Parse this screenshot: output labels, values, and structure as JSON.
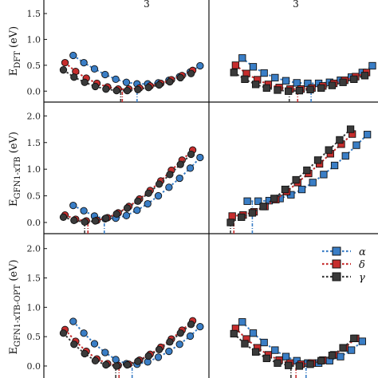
{
  "colors": {
    "alpha": "#3a7ec6",
    "delta": "#c62d2d",
    "gamma": "#3a3a3a"
  },
  "y_labels": [
    {
      "main": "E",
      "sub": "DFT",
      "unit": " (eV)"
    },
    {
      "main": "E",
      "sub": "GFN1-xTB",
      "unit": " (eV)"
    },
    {
      "main": "E",
      "sub": "GFN1-xTB-OPT",
      "unit": " (eV)"
    }
  ],
  "top_notes": [
    "3",
    "3"
  ],
  "legend": [
    {
      "key": "alpha",
      "label": "α"
    },
    {
      "key": "delta",
      "label": "δ"
    },
    {
      "key": "gamma",
      "label": "γ"
    }
  ],
  "chart_data": [
    {
      "type": "scatter",
      "row": 0,
      "col": 0,
      "marker": "circle",
      "ylim": [
        -0.15,
        1.7
      ],
      "yticks": [
        "0.0",
        "0.5",
        "1.0",
        "1.5"
      ],
      "xlim": [
        0.5,
        10
      ],
      "series": [
        {
          "key": "alpha",
          "x": [
            2.0,
            2.65,
            3.3,
            3.95,
            4.6,
            5.25,
            5.9,
            6.55,
            7.2,
            7.85,
            8.5,
            9.15,
            9.75
          ],
          "y": [
            0.69,
            0.55,
            0.43,
            0.32,
            0.23,
            0.17,
            0.14,
            0.14,
            0.16,
            0.21,
            0.28,
            0.37,
            0.49
          ]
        },
        {
          "key": "delta",
          "x": [
            1.5,
            2.15,
            2.8,
            3.45,
            4.1,
            4.75,
            5.4,
            6.05,
            6.7,
            7.35,
            8.0,
            8.65,
            9.3
          ],
          "y": [
            0.55,
            0.38,
            0.25,
            0.15,
            0.08,
            0.04,
            0.04,
            0.06,
            0.1,
            0.15,
            0.22,
            0.3,
            0.4
          ]
        },
        {
          "key": "gamma",
          "x": [
            1.4,
            2.05,
            2.7,
            3.35,
            4.0,
            4.65,
            5.3,
            5.95,
            6.6,
            7.25,
            7.9,
            8.55,
            9.2
          ],
          "y": [
            0.41,
            0.27,
            0.17,
            0.09,
            0.04,
            0.01,
            0.01,
            0.03,
            0.07,
            0.12,
            0.18,
            0.26,
            0.34
          ]
        }
      ],
      "minima": [
        {
          "key": "alpha",
          "x": 5.9
        },
        {
          "key": "delta",
          "x": 5.0
        },
        {
          "key": "gamma",
          "x": 4.9
        }
      ]
    },
    {
      "type": "scatter",
      "row": 0,
      "col": 1,
      "marker": "square",
      "ylim": [
        -0.15,
        1.7
      ],
      "yticks": [],
      "xlim": [
        0.5,
        10
      ],
      "series": [
        {
          "key": "alpha",
          "x": [
            2.2,
            2.85,
            3.5,
            4.15,
            4.8,
            5.45,
            6.1,
            6.75,
            7.4,
            8.05,
            8.7,
            9.35,
            9.95
          ],
          "y": [
            0.64,
            0.47,
            0.35,
            0.26,
            0.2,
            0.16,
            0.15,
            0.15,
            0.17,
            0.21,
            0.27,
            0.36,
            0.49
          ]
        },
        {
          "key": "delta",
          "x": [
            1.8,
            2.45,
            3.1,
            3.75,
            4.4,
            5.05,
            5.7,
            6.35,
            7.0,
            7.65,
            8.3,
            8.95,
            9.6
          ],
          "y": [
            0.5,
            0.34,
            0.22,
            0.13,
            0.07,
            0.04,
            0.04,
            0.06,
            0.1,
            0.15,
            0.21,
            0.28,
            0.36
          ]
        },
        {
          "key": "gamma",
          "x": [
            1.7,
            2.35,
            3.0,
            3.65,
            4.3,
            4.95,
            5.6,
            6.25,
            6.9,
            7.55,
            8.2,
            8.85,
            9.5
          ],
          "y": [
            0.36,
            0.23,
            0.13,
            0.06,
            0.02,
            0.0,
            0.01,
            0.03,
            0.06,
            0.11,
            0.17,
            0.23,
            0.3
          ]
        }
      ],
      "minima": [
        {
          "key": "alpha",
          "x": 6.3
        },
        {
          "key": "delta",
          "x": 5.5
        },
        {
          "key": "gamma",
          "x": 5.0
        }
      ]
    },
    {
      "type": "scatter",
      "row": 1,
      "col": 0,
      "marker": "circle",
      "ylim": [
        -0.15,
        2.2
      ],
      "yticks": [
        "0.0",
        "0.5",
        "1.0",
        "1.5",
        "2.0"
      ],
      "xlim": [
        0.5,
        10
      ],
      "series": [
        {
          "key": "alpha",
          "x": [
            2.0,
            2.65,
            3.3,
            3.95,
            4.6,
            5.25,
            5.9,
            6.55,
            7.2,
            7.85,
            8.5,
            9.15,
            9.75
          ],
          "y": [
            0.32,
            0.22,
            0.12,
            0.07,
            0.08,
            0.13,
            0.23,
            0.35,
            0.5,
            0.66,
            0.83,
            1.02,
            1.22
          ]
        },
        {
          "key": "delta",
          "x": [
            1.5,
            2.15,
            2.8,
            3.45,
            4.1,
            4.75,
            5.4,
            6.05,
            6.7,
            7.35,
            8.0,
            8.65,
            9.3
          ],
          "y": [
            0.14,
            0.06,
            0.03,
            0.04,
            0.09,
            0.18,
            0.3,
            0.44,
            0.6,
            0.78,
            0.98,
            1.17,
            1.36
          ]
        },
        {
          "key": "gamma",
          "x": [
            1.4,
            2.05,
            2.7,
            3.35,
            4.0,
            4.65,
            5.3,
            5.95,
            6.6,
            7.25,
            7.9,
            8.55,
            9.2
          ],
          "y": [
            0.1,
            0.04,
            0.01,
            0.03,
            0.08,
            0.16,
            0.27,
            0.4,
            0.55,
            0.72,
            0.9,
            1.09,
            1.28
          ]
        }
      ],
      "minima": [
        {
          "key": "alpha",
          "x": 3.9
        },
        {
          "key": "delta",
          "x": 2.9
        },
        {
          "key": "gamma",
          "x": 2.7
        }
      ]
    },
    {
      "type": "scatter",
      "row": 1,
      "col": 1,
      "marker": "square",
      "ylim": [
        -0.15,
        2.2
      ],
      "yticks": [],
      "xlim": [
        0.5,
        10
      ],
      "series": [
        {
          "key": "alpha",
          "x": [
            2.5,
            3.15,
            3.8,
            4.45,
            5.1,
            5.75,
            6.4,
            7.05,
            7.7,
            8.35,
            9.0,
            9.65
          ],
          "y": [
            0.4,
            0.4,
            0.41,
            0.45,
            0.52,
            0.62,
            0.75,
            0.9,
            1.07,
            1.25,
            1.45,
            1.65
          ]
        },
        {
          "key": "delta",
          "x": [
            1.6,
            2.25,
            2.9,
            3.55,
            4.2,
            4.85,
            5.5,
            6.15,
            6.8,
            7.45,
            8.1,
            8.75
          ],
          "y": [
            0.12,
            0.14,
            0.2,
            0.3,
            0.43,
            0.58,
            0.75,
            0.92,
            1.1,
            1.29,
            1.47,
            1.66
          ]
        },
        {
          "key": "gamma",
          "x": [
            1.5,
            2.15,
            2.8,
            3.45,
            4.1,
            4.75,
            5.4,
            6.05,
            6.7,
            7.35,
            8.0,
            8.65
          ],
          "y": [
            0.0,
            0.1,
            0.18,
            0.3,
            0.45,
            0.62,
            0.8,
            0.98,
            1.17,
            1.36,
            1.55,
            1.75
          ]
        }
      ],
      "minima": [
        {
          "key": "alpha",
          "x": 2.8
        },
        {
          "key": "delta",
          "x": 1.7
        },
        {
          "key": "gamma",
          "x": 1.5
        }
      ]
    },
    {
      "type": "scatter",
      "row": 2,
      "col": 0,
      "marker": "circle",
      "ylim": [
        -0.15,
        2.2
      ],
      "yticks": [
        "0.0",
        "0.5",
        "1.0",
        "1.5",
        "2.0"
      ],
      "xlim": [
        0.5,
        10
      ],
      "series": [
        {
          "key": "alpha",
          "x": [
            2.0,
            2.65,
            3.3,
            3.95,
            4.6,
            5.25,
            5.9,
            6.55,
            7.2,
            7.85,
            8.5,
            9.15,
            9.75
          ],
          "y": [
            0.76,
            0.56,
            0.38,
            0.23,
            0.11,
            0.04,
            0.03,
            0.07,
            0.15,
            0.25,
            0.37,
            0.51,
            0.67
          ]
        },
        {
          "key": "delta",
          "x": [
            1.5,
            2.15,
            2.8,
            3.45,
            4.1,
            4.75,
            5.4,
            6.05,
            6.7,
            7.35,
            8.0,
            8.65,
            9.3
          ],
          "y": [
            0.62,
            0.42,
            0.25,
            0.12,
            0.04,
            0.01,
            0.03,
            0.1,
            0.2,
            0.32,
            0.46,
            0.61,
            0.77
          ]
        },
        {
          "key": "gamma",
          "x": [
            1.4,
            2.05,
            2.7,
            3.35,
            4.0,
            4.65,
            5.3,
            5.95,
            6.6,
            7.25,
            7.9,
            8.55,
            9.2
          ],
          "y": [
            0.56,
            0.37,
            0.21,
            0.09,
            0.02,
            0.0,
            0.02,
            0.08,
            0.17,
            0.28,
            0.41,
            0.56,
            0.71
          ]
        }
      ],
      "minima": [
        {
          "key": "alpha",
          "x": 5.6
        },
        {
          "key": "delta",
          "x": 4.8
        },
        {
          "key": "gamma",
          "x": 4.6
        }
      ]
    },
    {
      "type": "scatter",
      "row": 2,
      "col": 1,
      "marker": "square",
      "ylim": [
        -0.15,
        2.2
      ],
      "yticks": [],
      "xlim": [
        0.5,
        10
      ],
      "series": [
        {
          "key": "alpha",
          "x": [
            2.2,
            2.85,
            3.5,
            4.15,
            4.8,
            5.45,
            6.1,
            6.75,
            7.4,
            8.05,
            8.7,
            9.35
          ],
          "y": [
            0.75,
            0.56,
            0.4,
            0.27,
            0.16,
            0.09,
            0.05,
            0.05,
            0.09,
            0.16,
            0.27,
            0.42
          ]
        },
        {
          "key": "delta",
          "x": [
            1.8,
            2.45,
            3.1,
            3.75,
            4.4,
            5.05,
            5.7,
            6.35,
            7.0,
            7.65,
            8.3,
            8.95
          ],
          "y": [
            0.64,
            0.46,
            0.31,
            0.19,
            0.1,
            0.05,
            0.03,
            0.05,
            0.1,
            0.19,
            0.31,
            0.47
          ]
        },
        {
          "key": "gamma",
          "x": [
            1.7,
            2.35,
            3.0,
            3.65,
            4.3,
            4.95,
            5.6,
            6.25,
            6.9,
            7.55,
            8.2,
            8.85
          ],
          "y": [
            0.55,
            0.38,
            0.24,
            0.13,
            0.05,
            0.01,
            0.0,
            0.03,
            0.09,
            0.18,
            0.31,
            0.47
          ]
        }
      ],
      "minima": [
        {
          "key": "alpha",
          "x": 6.0
        },
        {
          "key": "delta",
          "x": 5.4
        },
        {
          "key": "gamma",
          "x": 5.1
        }
      ]
    }
  ]
}
